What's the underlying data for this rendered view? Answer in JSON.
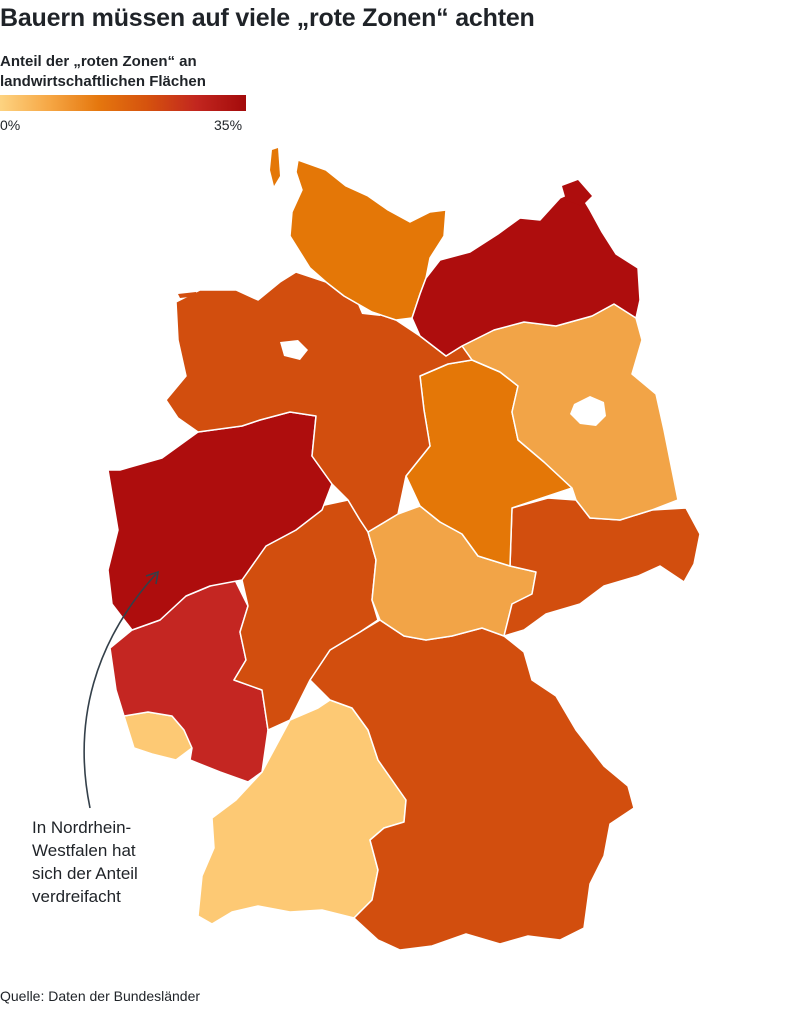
{
  "title": "Bauern müssen auf viele „rote Zonen“ achten",
  "legend": {
    "title_line1": "Anteil der „roten Zonen“ an",
    "title_line2": "landwirtschaftlichen Flächen",
    "min_label": "0%",
    "max_label": "35%",
    "min_value": 0,
    "max_value": 35,
    "colors": [
      "#fdd381",
      "#f6a745",
      "#e5770e",
      "#d5520e",
      "#c2261f",
      "#a30b0b"
    ]
  },
  "colors": {
    "light_yellow": "#fdc974",
    "light_orange": "#f2a447",
    "orange": "#e47707",
    "dark_orange": "#d24e0e",
    "red": "#c42622",
    "dark_red": "#ae0d0d",
    "annotation_line": "#34404a"
  },
  "states": [
    {
      "name": "Schleswig-Holstein",
      "color": "#e47707"
    },
    {
      "name": "Mecklenburg-Vorpommern",
      "color": "#ae0d0d"
    },
    {
      "name": "Niedersachsen",
      "color": "#d24e0e"
    },
    {
      "name": "Brandenburg",
      "color": "#f2a447"
    },
    {
      "name": "Sachsen-Anhalt",
      "color": "#e47707"
    },
    {
      "name": "Nordrhein-Westfalen",
      "color": "#ae0d0d"
    },
    {
      "name": "Hessen",
      "color": "#d24e0e"
    },
    {
      "name": "Thüringen",
      "color": "#f2a447"
    },
    {
      "name": "Sachsen",
      "color": "#d24e0e"
    },
    {
      "name": "Rheinland-Pfalz",
      "color": "#c42622"
    },
    {
      "name": "Saarland",
      "color": "#fdc974"
    },
    {
      "name": "Baden-Württemberg",
      "color": "#fdc974"
    },
    {
      "name": "Bayern",
      "color": "#d24e0e"
    }
  ],
  "annotation": {
    "line1": "In Nordrhein-",
    "line2": "Westfalen hat",
    "line3": "sich der Anteil",
    "line4": "verdreifacht"
  },
  "source": "Quelle: Daten der Bundesländer"
}
